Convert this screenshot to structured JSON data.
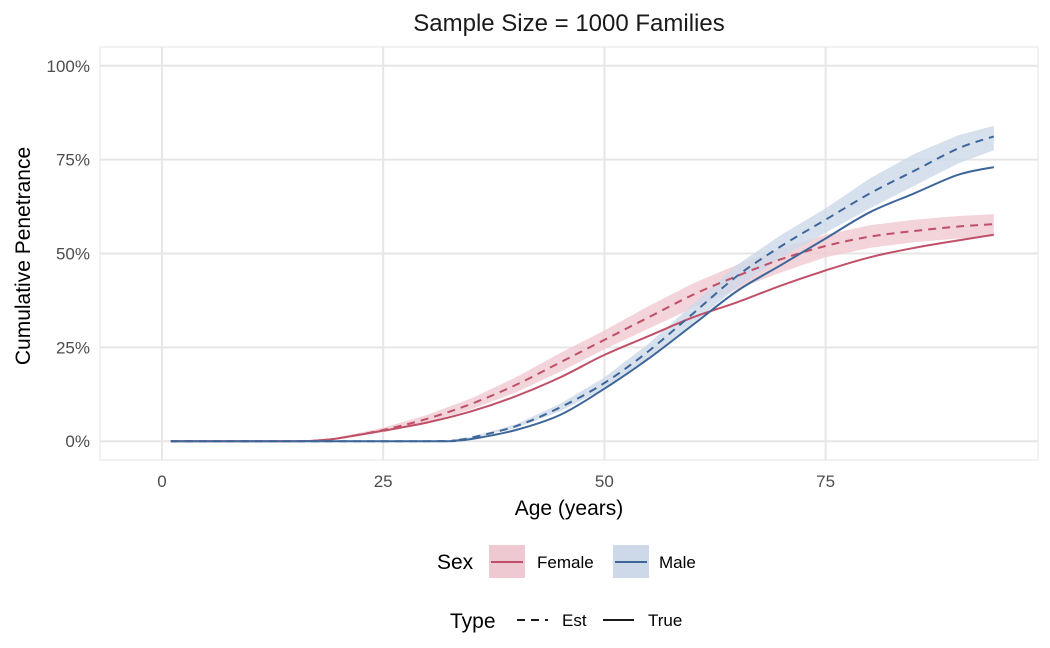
{
  "colors": {
    "female": "#c05068",
    "male": "#3d6699",
    "female_band": "#efc9d1",
    "male_band": "#cdd8e9",
    "grid": "#e6e6e6",
    "panel_border": "#e6e6e6",
    "text": "#1a1a1a",
    "tick_text": "#4d4d4d"
  },
  "chart_data": {
    "type": "line",
    "title": "Sample Size = 1000 Families",
    "xlabel": "Age (years)",
    "ylabel": "Cumulative Penetrance",
    "xlim": [
      -7,
      99
    ],
    "ylim": [
      -0.05,
      1.05
    ],
    "x_ticks": [
      0,
      25,
      50,
      75
    ],
    "x_tick_labels": [
      "0",
      "25",
      "50",
      "75"
    ],
    "y_ticks": [
      0,
      0.25,
      0.5,
      0.75,
      1.0
    ],
    "y_tick_labels": [
      "0%",
      "25%",
      "50%",
      "75%",
      "100%"
    ],
    "grid": true,
    "legend_position": "bottom",
    "legends": [
      {
        "title": "Sex",
        "entries": [
          {
            "label": "Female",
            "style": "female"
          },
          {
            "label": "Male",
            "style": "male"
          }
        ]
      },
      {
        "title": "Type",
        "entries": [
          {
            "label": "Est",
            "style": "dashed"
          },
          {
            "label": "True",
            "style": "solid"
          }
        ]
      }
    ],
    "series": [
      {
        "sex": "Female",
        "type": "Est",
        "x": [
          1,
          15,
          18,
          20,
          25,
          30,
          35,
          40,
          45,
          50,
          55,
          60,
          65,
          70,
          75,
          80,
          85,
          90,
          94
        ],
        "y": [
          0,
          0,
          0.003,
          0.008,
          0.03,
          0.06,
          0.1,
          0.15,
          0.21,
          0.27,
          0.33,
          0.39,
          0.44,
          0.485,
          0.52,
          0.545,
          0.56,
          0.572,
          0.578
        ],
        "lower": [
          0,
          0,
          0.002,
          0.006,
          0.024,
          0.05,
          0.085,
          0.13,
          0.185,
          0.245,
          0.3,
          0.355,
          0.405,
          0.45,
          0.49,
          0.515,
          0.53,
          0.54,
          0.545
        ],
        "upper": [
          0,
          0,
          0.004,
          0.011,
          0.036,
          0.07,
          0.115,
          0.17,
          0.235,
          0.295,
          0.36,
          0.42,
          0.47,
          0.515,
          0.55,
          0.575,
          0.59,
          0.6,
          0.605
        ]
      },
      {
        "sex": "Female",
        "type": "True",
        "x": [
          1,
          15,
          18,
          20,
          25,
          30,
          35,
          40,
          45,
          50,
          55,
          60,
          65,
          70,
          75,
          80,
          85,
          90,
          94
        ],
        "y": [
          0,
          0,
          0.003,
          0.008,
          0.028,
          0.05,
          0.08,
          0.12,
          0.17,
          0.23,
          0.28,
          0.33,
          0.37,
          0.415,
          0.455,
          0.49,
          0.515,
          0.535,
          0.55
        ]
      },
      {
        "sex": "Male",
        "type": "Est",
        "x": [
          1,
          30,
          33,
          35,
          40,
          45,
          50,
          55,
          60,
          65,
          70,
          75,
          80,
          85,
          90,
          94
        ],
        "y": [
          0,
          0,
          0.003,
          0.01,
          0.04,
          0.09,
          0.155,
          0.24,
          0.34,
          0.44,
          0.52,
          0.59,
          0.66,
          0.72,
          0.78,
          0.812
        ],
        "lower": [
          0,
          0,
          0.002,
          0.008,
          0.035,
          0.08,
          0.14,
          0.22,
          0.315,
          0.41,
          0.49,
          0.555,
          0.62,
          0.68,
          0.74,
          0.775
        ],
        "upper": [
          0,
          0,
          0.004,
          0.012,
          0.045,
          0.1,
          0.17,
          0.26,
          0.365,
          0.47,
          0.55,
          0.62,
          0.7,
          0.765,
          0.815,
          0.84
        ]
      },
      {
        "sex": "Male",
        "type": "True",
        "x": [
          1,
          30,
          33,
          35,
          40,
          45,
          50,
          55,
          60,
          65,
          70,
          75,
          80,
          85,
          90,
          94
        ],
        "y": [
          0,
          0,
          0.002,
          0.006,
          0.03,
          0.07,
          0.14,
          0.22,
          0.31,
          0.4,
          0.47,
          0.54,
          0.61,
          0.66,
          0.71,
          0.73
        ]
      }
    ]
  }
}
